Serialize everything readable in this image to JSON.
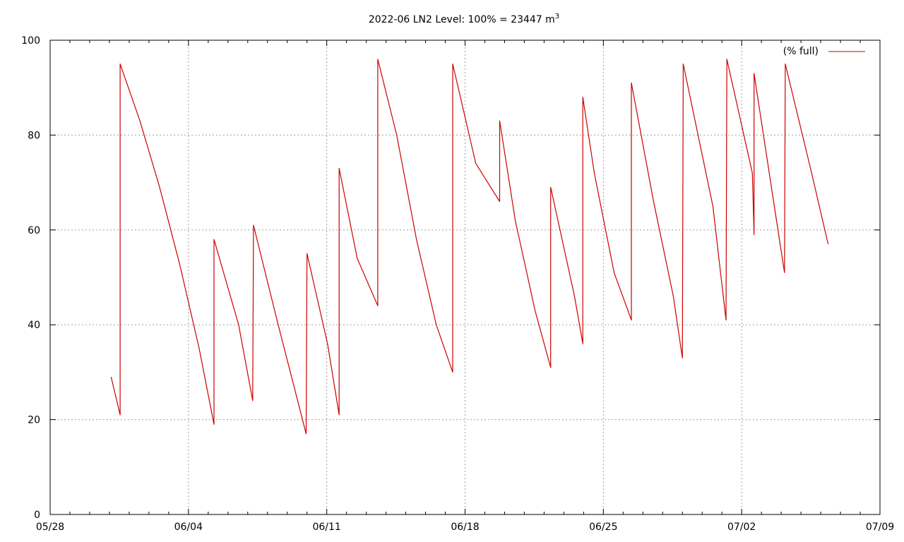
{
  "chart_data": {
    "type": "line",
    "title": "2022-06 LN2 Level: 100% = 23447 m",
    "title_superscript": "3",
    "xlabel": "",
    "ylabel": "",
    "x_ticks": [
      "05/28",
      "06/04",
      "06/11",
      "06/18",
      "06/25",
      "07/02",
      "07/09"
    ],
    "xlim": [
      "2022-05-28",
      "2022-07-09"
    ],
    "y_ticks": [
      "0",
      "20",
      "40",
      "60",
      "80",
      "100"
    ],
    "ylim": [
      0,
      100
    ],
    "grid": true,
    "legend_position": "top-right",
    "series": [
      {
        "name": "(% full)",
        "color": "#cc0000",
        "points": [
          [
            "2022-05-31T02:00",
            29
          ],
          [
            "2022-05-31T13:00",
            21
          ],
          [
            "2022-05-31T13:00",
            95
          ],
          [
            "2022-06-01T13:00",
            83
          ],
          [
            "2022-06-02T13:00",
            69
          ],
          [
            "2022-06-03T13:00",
            53
          ],
          [
            "2022-06-04T13:00",
            35
          ],
          [
            "2022-06-05T07:00",
            19
          ],
          [
            "2022-06-05T07:00",
            58
          ],
          [
            "2022-06-06T13:00",
            40
          ],
          [
            "2022-06-07T06:00",
            24
          ],
          [
            "2022-06-07T07:00",
            61
          ],
          [
            "2022-06-08T13:00",
            40
          ],
          [
            "2022-06-09T23:00",
            17
          ],
          [
            "2022-06-10T00:00",
            55
          ],
          [
            "2022-06-11T01:00",
            36
          ],
          [
            "2022-06-11T15:00",
            21
          ],
          [
            "2022-06-11T15:00",
            73
          ],
          [
            "2022-06-12T13:00",
            54
          ],
          [
            "2022-06-13T14:00",
            44
          ],
          [
            "2022-06-13T14:00",
            96
          ],
          [
            "2022-06-14T13:00",
            80
          ],
          [
            "2022-06-15T13:00",
            58
          ],
          [
            "2022-06-16T13:00",
            40
          ],
          [
            "2022-06-17T09:00",
            30
          ],
          [
            "2022-06-17T09:00",
            95
          ],
          [
            "2022-06-18T13:00",
            74
          ],
          [
            "2022-06-19T18:00",
            66
          ],
          [
            "2022-06-19T18:00",
            83
          ],
          [
            "2022-06-20T13:00",
            62
          ],
          [
            "2022-06-21T13:00",
            43
          ],
          [
            "2022-06-22T08:00",
            31
          ],
          [
            "2022-06-22T08:00",
            69
          ],
          [
            "2022-06-23T13:00",
            46
          ],
          [
            "2022-06-23T23:00",
            36
          ],
          [
            "2022-06-23T23:00",
            88
          ],
          [
            "2022-06-24T13:00",
            72
          ],
          [
            "2022-06-25T13:00",
            51
          ],
          [
            "2022-06-26T10:00",
            41
          ],
          [
            "2022-06-26T10:00",
            91
          ],
          [
            "2022-06-27T13:00",
            66
          ],
          [
            "2022-06-28T13:00",
            46
          ],
          [
            "2022-06-29T00:00",
            33
          ],
          [
            "2022-06-29T01:00",
            95
          ],
          [
            "2022-06-30T13:00",
            65
          ],
          [
            "2022-07-01T05:00",
            41
          ],
          [
            "2022-07-01T06:00",
            96
          ],
          [
            "2022-07-02T13:00",
            72
          ],
          [
            "2022-07-02T15:00",
            59
          ],
          [
            "2022-07-02T15:00",
            93
          ],
          [
            "2022-07-03T13:00",
            68
          ],
          [
            "2022-07-04T04:00",
            51
          ],
          [
            "2022-07-04T05:00",
            95
          ],
          [
            "2022-07-05T13:00",
            72
          ],
          [
            "2022-07-06T09:00",
            57
          ]
        ]
      }
    ]
  }
}
